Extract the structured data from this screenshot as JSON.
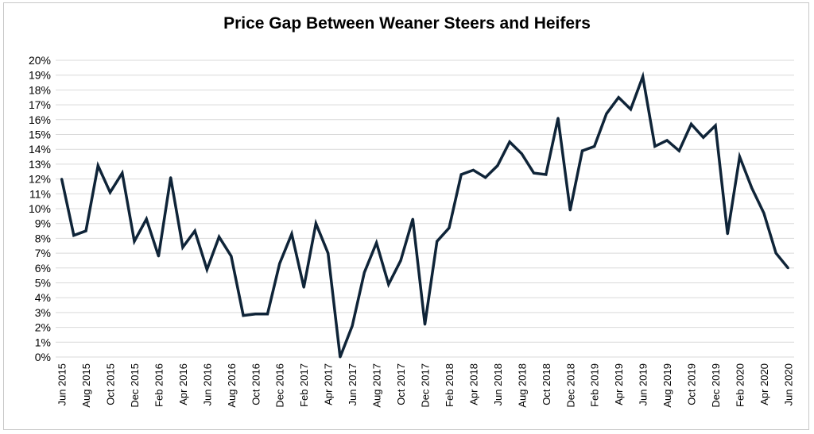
{
  "chart_data": {
    "type": "line",
    "title": "Price Gap Between Weaner Steers and Heifers",
    "xlabel": "",
    "ylabel": "",
    "ylim": [
      0,
      20
    ],
    "y_ticks": [
      "0%",
      "1%",
      "2%",
      "3%",
      "4%",
      "5%",
      "6%",
      "7%",
      "8%",
      "9%",
      "10%",
      "11%",
      "12%",
      "13%",
      "14%",
      "15%",
      "16%",
      "17%",
      "18%",
      "19%",
      "20%"
    ],
    "x_tick_labels": [
      "Jun 2015",
      "Aug 2015",
      "Oct 2015",
      "Dec 2015",
      "Feb 2016",
      "Apr 2016",
      "Jun 2016",
      "Aug 2016",
      "Oct 2016",
      "Dec 2016",
      "Feb 2017",
      "Apr 2017",
      "Jun 2017",
      "Aug 2017",
      "Oct 2017",
      "Dec 2017",
      "Feb 2018",
      "Apr 2018",
      "Jun 2018",
      "Aug 2018",
      "Oct 2018",
      "Dec 2018",
      "Feb 2019",
      "Apr 2019",
      "Jun 2019",
      "Aug 2019",
      "Oct 2019",
      "Dec 2019",
      "Feb 2020",
      "Apr 2020",
      "Jun 2020"
    ],
    "grid": true,
    "legend": "none",
    "line_color": "#0f2438",
    "x": [
      "Jun 2015",
      "Jul 2015",
      "Aug 2015",
      "Sep 2015",
      "Oct 2015",
      "Nov 2015",
      "Dec 2015",
      "Jan 2016",
      "Feb 2016",
      "Mar 2016",
      "Apr 2016",
      "May 2016",
      "Jun 2016",
      "Jul 2016",
      "Aug 2016",
      "Sep 2016",
      "Oct 2016",
      "Nov 2016",
      "Dec 2016",
      "Jan 2017",
      "Feb 2017",
      "Mar 2017",
      "Apr 2017",
      "May 2017",
      "Jun 2017",
      "Jul 2017",
      "Aug 2017",
      "Sep 2017",
      "Oct 2017",
      "Nov 2017",
      "Dec 2017",
      "Jan 2018",
      "Feb 2018",
      "Mar 2018",
      "Apr 2018",
      "May 2018",
      "Jun 2018",
      "Jul 2018",
      "Aug 2018",
      "Sep 2018",
      "Oct 2018",
      "Nov 2018",
      "Dec 2018",
      "Jan 2019",
      "Feb 2019",
      "Mar 2019",
      "Apr 2019",
      "May 2019",
      "Jun 2019",
      "Jul 2019",
      "Aug 2019",
      "Sep 2019",
      "Oct 2019",
      "Nov 2019",
      "Dec 2019",
      "Jan 2020",
      "Feb 2020",
      "Mar 2020",
      "Apr 2020",
      "May 2020",
      "Jun 2020"
    ],
    "series": [
      {
        "values": [
          12.0,
          8.2,
          8.5,
          12.9,
          11.1,
          12.4,
          7.8,
          9.3,
          6.8,
          12.1,
          7.4,
          8.5,
          5.9,
          8.1,
          6.8,
          2.8,
          2.9,
          2.9,
          6.3,
          8.3,
          4.7,
          9.0,
          7.0,
          0.0,
          2.1,
          5.7,
          7.7,
          4.9,
          6.5,
          9.3,
          2.2,
          7.8,
          8.7,
          12.3,
          12.6,
          12.1,
          12.9,
          14.5,
          13.7,
          12.4,
          12.3,
          16.1,
          9.9,
          13.9,
          14.2,
          16.4,
          17.5,
          16.7,
          18.9,
          14.2,
          14.6,
          13.9,
          15.7,
          14.8,
          15.6,
          8.3,
          13.5,
          11.4,
          9.7,
          7.0,
          6.0
        ]
      }
    ]
  }
}
